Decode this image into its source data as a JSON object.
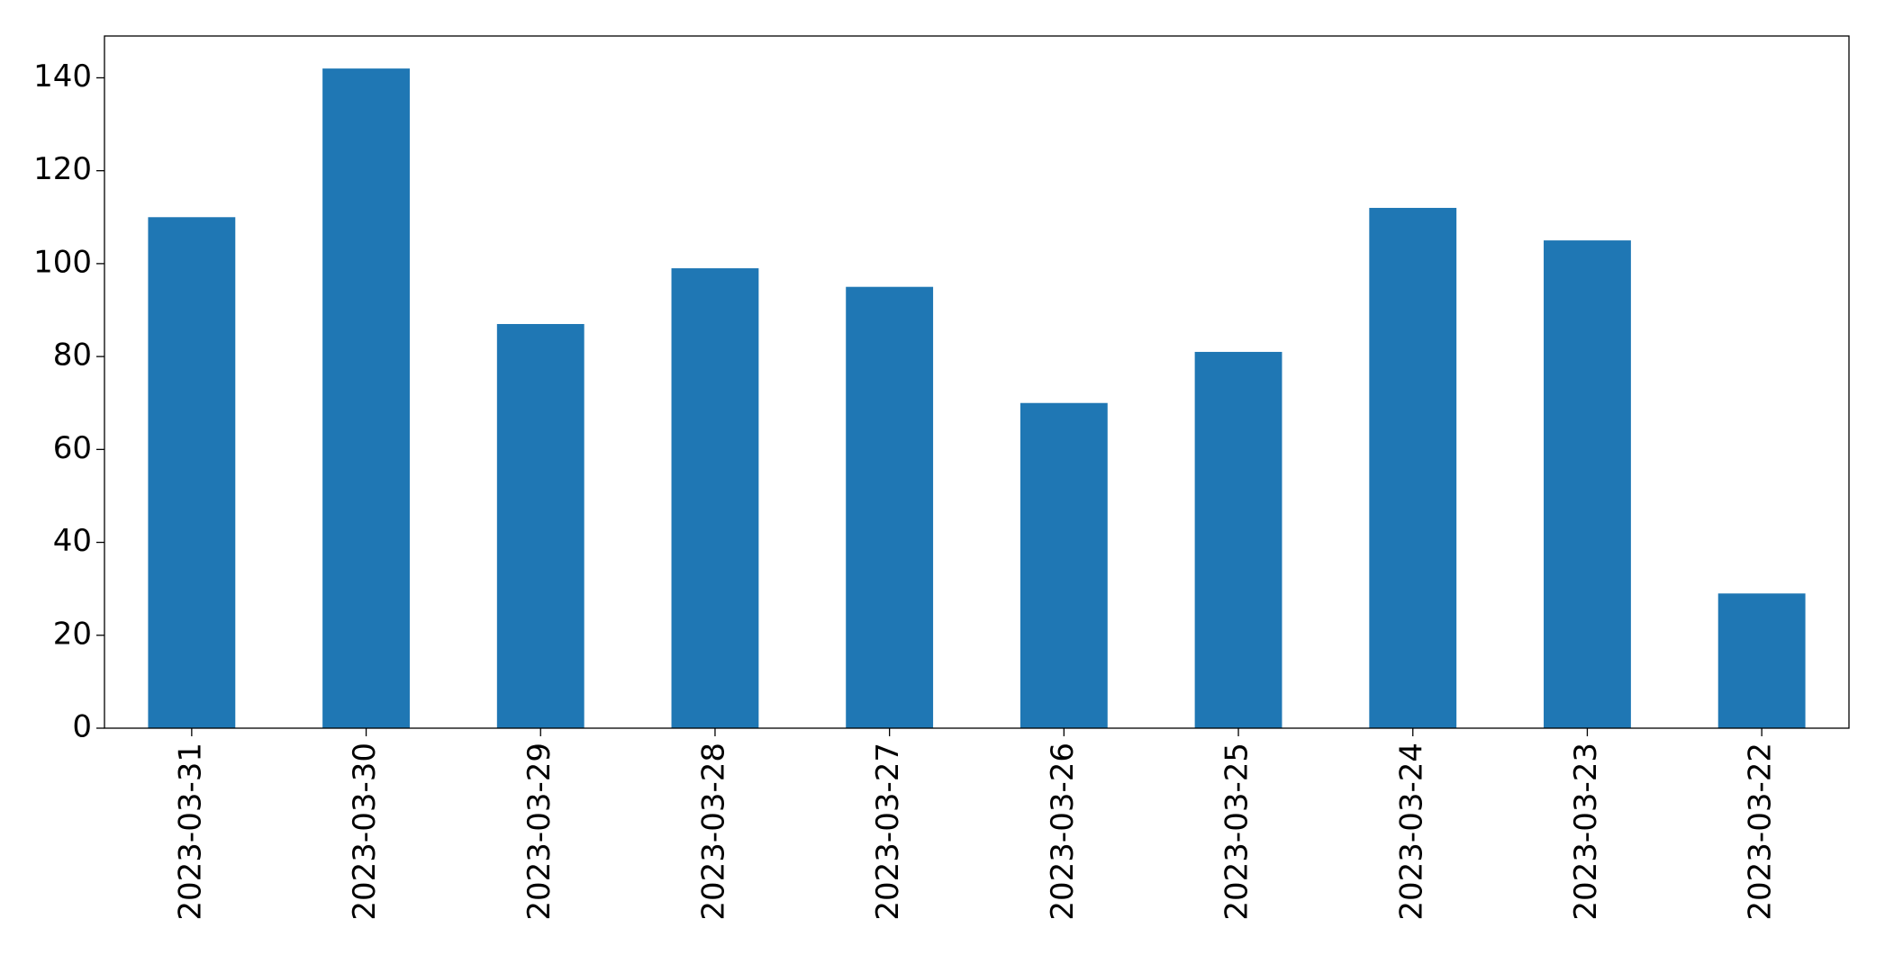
{
  "chart_data": {
    "type": "bar",
    "categories": [
      "2023-03-31",
      "2023-03-30",
      "2023-03-29",
      "2023-03-28",
      "2023-03-27",
      "2023-03-26",
      "2023-03-25",
      "2023-03-24",
      "2023-03-23",
      "2023-03-22"
    ],
    "values": [
      110,
      142,
      87,
      99,
      95,
      70,
      81,
      112,
      105,
      29
    ],
    "color": "#1f77b4",
    "ylim": [
      0,
      149
    ],
    "yticks": [
      0,
      20,
      40,
      60,
      80,
      100,
      120,
      140
    ],
    "grid": false
  }
}
